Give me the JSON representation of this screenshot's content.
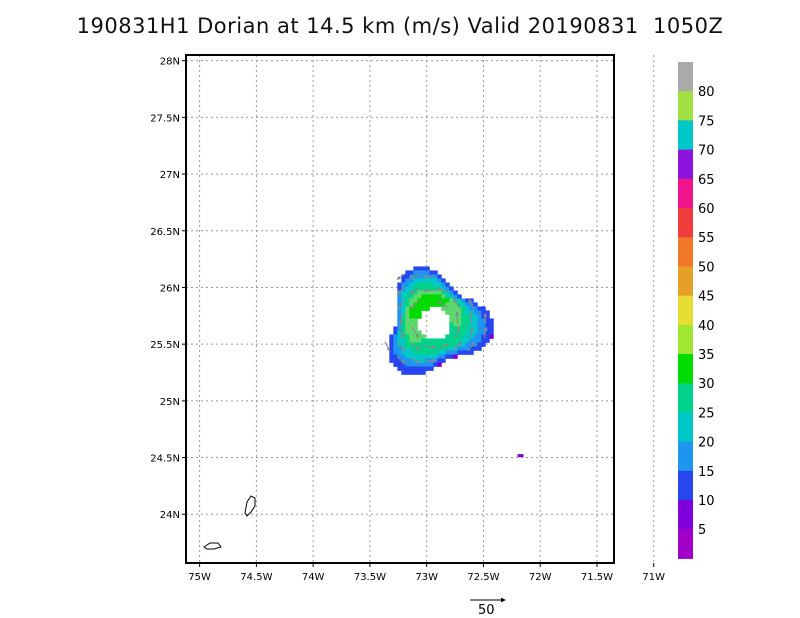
{
  "title": "190831H1 Dorian at 14.5 km (m/s) Valid 20190831  1050Z",
  "chart_data": {
    "type": "heatmap",
    "title": "190831H1 Dorian at 14.5 km (m/s) Valid 20190831  1050Z",
    "x_ticks": [
      "75W",
      "74.5W",
      "74W",
      "73.5W",
      "73W",
      "72.5W",
      "72W",
      "71.5W",
      "71W"
    ],
    "x_tick_values": [
      -75.0,
      -74.5,
      -74.0,
      -73.5,
      -73.0,
      -72.5,
      -72.0,
      -71.5,
      -71.0
    ],
    "y_ticks": [
      "28N",
      "27.5N",
      "27N",
      "26.5N",
      "26N",
      "25.5N",
      "25N",
      "24.5N",
      "24N"
    ],
    "y_tick_values": [
      28.0,
      27.5,
      27.0,
      26.5,
      26.0,
      25.5,
      25.0,
      24.5,
      24.0
    ],
    "xlim": [
      -75.12,
      -71.35
    ],
    "ylim": [
      23.57,
      28.05
    ],
    "grid": true,
    "colorbar": {
      "labels": [
        "80",
        "75",
        "70",
        "65",
        "60",
        "55",
        "50",
        "45",
        "40",
        "35",
        "30",
        "25",
        "20",
        "15",
        "10",
        "5"
      ],
      "colors": [
        "#aaaaaa",
        "#a0e040",
        "#00c8c8",
        "#8c14dc",
        "#f0148c",
        "#f03c3c",
        "#f07828",
        "#e6a028",
        "#e6dc32",
        "#a0e632",
        "#00dc00",
        "#00d28c",
        "#00c8c8",
        "#1e96f0",
        "#2846f0",
        "#8000dc",
        "#a000c8"
      ]
    },
    "center": {
      "lon": -72.95,
      "lat": 25.7
    },
    "wind_field": {
      "eye_radius_deg": 0.15,
      "outer_radius_deg": 0.52,
      "max_speed_ms": 32
    },
    "vector_scale": {
      "label": "50",
      "value": 50
    }
  }
}
